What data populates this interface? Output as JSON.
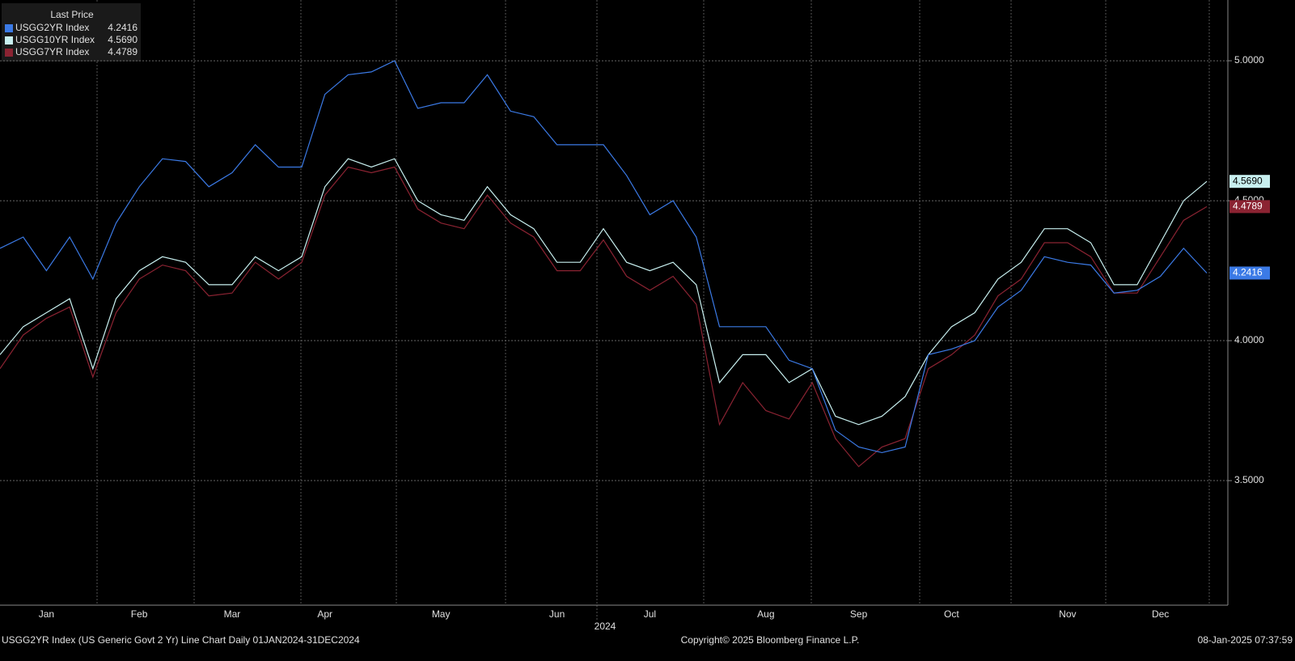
{
  "chart_data": {
    "type": "line",
    "legend_title": "Last Price",
    "footer_left": "USGG2YR Index (US Generic Govt 2 Yr) Line Chart  Daily 01JAN2024-31DEC2024",
    "footer_center": "Copyright© 2025 Bloomberg Finance L.P.",
    "footer_right": "08-Jan-2025 07:37:59",
    "year_label": "2024",
    "categories": [
      null,
      null,
      "Jan",
      null,
      null,
      null,
      "Feb",
      null,
      null,
      null,
      "Mar",
      null,
      null,
      null,
      "Apr",
      null,
      null,
      null,
      null,
      "May",
      null,
      null,
      null,
      null,
      "Jun",
      null,
      null,
      null,
      "Jul",
      null,
      null,
      null,
      null,
      "Aug",
      null,
      null,
      null,
      "Sep",
      null,
      null,
      null,
      "Oct",
      null,
      null,
      null,
      null,
      "Nov",
      null,
      null,
      null,
      "Dec",
      null,
      null
    ],
    "series": [
      {
        "name": "USGG2YR Index",
        "color": "#3b7ae6",
        "values": [
          4.33,
          4.37,
          4.25,
          4.37,
          4.22,
          4.42,
          4.55,
          4.65,
          4.64,
          4.55,
          4.6,
          4.7,
          4.62,
          4.62,
          4.88,
          4.95,
          4.96,
          5.0,
          4.83,
          4.85,
          4.85,
          4.95,
          4.82,
          4.8,
          4.7,
          4.7,
          4.7,
          4.59,
          4.45,
          4.5,
          4.37,
          4.05,
          4.05,
          4.05,
          3.93,
          3.9,
          3.68,
          3.62,
          3.6,
          3.62,
          3.95,
          3.97,
          4.0,
          4.12,
          4.18,
          4.3,
          4.28,
          4.27,
          4.17,
          4.18,
          4.23,
          4.33,
          4.2416
        ],
        "value_labels": [
          null,
          null,
          null,
          null,
          null,
          null,
          null,
          null,
          null,
          null,
          null,
          null,
          null,
          null,
          null,
          null,
          null,
          null,
          null,
          null,
          null,
          null,
          null,
          null,
          null,
          null,
          null,
          null,
          null,
          null,
          null,
          null,
          null,
          null,
          null,
          null,
          null,
          null,
          null,
          null,
          null,
          null,
          null,
          null,
          null,
          null,
          null,
          null,
          null,
          null,
          null,
          null,
          "4.2416"
        ]
      },
      {
        "name": "USGG10YR Index",
        "color": "#c8f0f0",
        "values": [
          3.95,
          4.05,
          4.1,
          4.15,
          3.9,
          4.15,
          4.25,
          4.3,
          4.28,
          4.2,
          4.2,
          4.3,
          4.25,
          4.3,
          4.55,
          4.65,
          4.62,
          4.65,
          4.5,
          4.45,
          4.43,
          4.55,
          4.45,
          4.4,
          4.28,
          4.28,
          4.4,
          4.28,
          4.25,
          4.28,
          4.2,
          3.85,
          3.95,
          3.95,
          3.85,
          3.9,
          3.73,
          3.7,
          3.73,
          3.8,
          3.95,
          4.05,
          4.1,
          4.22,
          4.28,
          4.4,
          4.4,
          4.35,
          4.2,
          4.2,
          4.35,
          4.5,
          4.569
        ],
        "value_labels": [
          null,
          null,
          null,
          null,
          null,
          null,
          null,
          null,
          null,
          null,
          null,
          null,
          null,
          null,
          null,
          null,
          null,
          null,
          null,
          null,
          null,
          null,
          null,
          null,
          null,
          null,
          null,
          null,
          null,
          null,
          null,
          null,
          null,
          null,
          null,
          null,
          null,
          null,
          null,
          null,
          null,
          null,
          null,
          null,
          null,
          null,
          null,
          null,
          null,
          null,
          null,
          null,
          "4.5690"
        ]
      },
      {
        "name": "USGG7YR Index",
        "color": "#8b2332",
        "values": [
          3.9,
          4.02,
          4.08,
          4.12,
          3.87,
          4.1,
          4.22,
          4.27,
          4.25,
          4.16,
          4.17,
          4.28,
          4.22,
          4.28,
          4.52,
          4.62,
          4.6,
          4.62,
          4.47,
          4.42,
          4.4,
          4.52,
          4.42,
          4.37,
          4.25,
          4.25,
          4.36,
          4.23,
          4.18,
          4.23,
          4.13,
          3.7,
          3.85,
          3.75,
          3.72,
          3.85,
          3.65,
          3.55,
          3.62,
          3.65,
          3.9,
          3.95,
          4.02,
          4.16,
          4.22,
          4.35,
          4.35,
          4.3,
          4.17,
          4.17,
          4.3,
          4.43,
          4.4789
        ],
        "value_labels": [
          null,
          null,
          null,
          null,
          null,
          null,
          null,
          null,
          null,
          null,
          null,
          null,
          null,
          null,
          null,
          null,
          null,
          null,
          null,
          null,
          null,
          null,
          null,
          null,
          null,
          null,
          null,
          null,
          null,
          null,
          null,
          null,
          null,
          null,
          null,
          null,
          null,
          null,
          null,
          null,
          null,
          null,
          null,
          null,
          null,
          null,
          null,
          null,
          null,
          null,
          null,
          null,
          "4.4789"
        ]
      }
    ],
    "ylim": [
      3.055,
      5.217
    ],
    "yticks": [
      {
        "value": 3.5,
        "label": "3.5000"
      },
      {
        "value": 4,
        "label": "4.0000"
      },
      {
        "value": 4.5,
        "label": "4.5000"
      },
      {
        "value": 5,
        "label": "5.0000"
      }
    ],
    "grid": true
  }
}
